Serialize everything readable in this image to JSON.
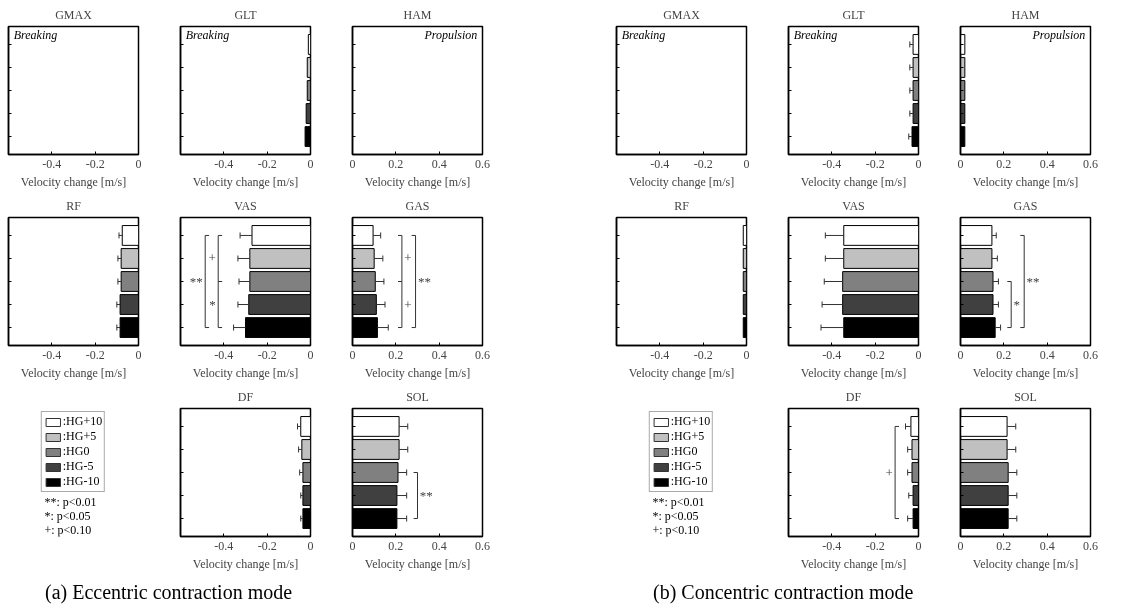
{
  "chart_data": [
    {
      "type": "bar",
      "title": "GMAX",
      "orientation": "horizontal",
      "categories": [
        null,
        null,
        null,
        null,
        null
      ],
      "values": [
        0,
        0,
        0,
        0,
        0
      ],
      "colors": [
        "#ffffff",
        "#c0c0c0",
        "#808080",
        "#404040",
        "#000000"
      ],
      "xlim": [
        -0.6,
        0
      ],
      "xticks": [
        -0.4,
        -0.2,
        0
      ],
      "xlabel": "Velocity change [m/s]",
      "tick_labels": "x",
      "annotations": [
        "Breaking"
      ]
    },
    {
      "type": "bar",
      "title": "GLT",
      "orientation": "horizontal",
      "categories": [
        null,
        null,
        null,
        null,
        null
      ],
      "values": [
        -0.01,
        -0.015,
        -0.015,
        -0.02,
        -0.025
      ],
      "colors": [
        "#ffffff",
        "#c0c0c0",
        "#808080",
        "#404040",
        "#000000"
      ],
      "xlim": [
        -0.6,
        0
      ],
      "xticks": [
        -0.4,
        -0.2,
        0
      ],
      "xlabel": "Velocity change [m/s]",
      "tick_labels": "x",
      "annotations": [
        "Breaking"
      ]
    },
    {
      "type": "bar",
      "title": "HAM",
      "orientation": "horizontal",
      "categories": [
        null,
        null,
        null,
        null,
        null
      ],
      "values": [
        0,
        0,
        0,
        0,
        0
      ],
      "colors": [
        "#ffffff",
        "#c0c0c0",
        "#808080",
        "#404040",
        "#000000"
      ],
      "xlim": [
        0,
        0.6
      ],
      "xticks": [
        0,
        0.2,
        0.4,
        0.6
      ],
      "xlabel": "Velocity change [m/s]",
      "tick_labels": "x",
      "annotations": [
        "Propulsion"
      ]
    },
    {
      "type": "bar",
      "title": "RF",
      "orientation": "horizontal",
      "categories": [
        null,
        null,
        null,
        null,
        null
      ],
      "values": [
        -0.075,
        -0.08,
        -0.08,
        -0.085,
        -0.085
      ],
      "errors": [
        [
          -0.09,
          -0.075
        ],
        [
          -0.095,
          -0.08
        ],
        [
          -0.095,
          -0.08
        ],
        [
          -0.1,
          -0.085
        ],
        [
          -0.1,
          -0.085
        ]
      ],
      "colors": [
        "#ffffff",
        "#c0c0c0",
        "#808080",
        "#404040",
        "#000000"
      ],
      "xlim": [
        -0.6,
        0
      ],
      "xticks": [
        -0.4,
        -0.2,
        0
      ],
      "xlabel": "Velocity change [m/s]",
      "tick_labels": "x"
    },
    {
      "type": "bar",
      "title": "VAS",
      "orientation": "horizontal",
      "categories": [
        null,
        null,
        null,
        null,
        null
      ],
      "values": [
        -0.27,
        -0.28,
        -0.28,
        -0.285,
        -0.3
      ],
      "errors": [
        [
          -0.325,
          -0.27
        ],
        [
          -0.335,
          -0.28
        ],
        [
          -0.33,
          -0.28
        ],
        [
          -0.335,
          -0.285
        ],
        [
          -0.355,
          -0.3
        ]
      ],
      "colors": [
        "#ffffff",
        "#c0c0c0",
        "#808080",
        "#404040",
        "#000000"
      ],
      "xlim": [
        -0.6,
        0
      ],
      "xticks": [
        -0.4,
        -0.2,
        0
      ],
      "xlabel": "Velocity change [m/s]",
      "tick_labels": "x",
      "annotations": [
        "+",
        "*",
        "**"
      ]
    },
    {
      "type": "bar",
      "title": "GAS",
      "orientation": "horizontal",
      "categories": [
        null,
        null,
        null,
        null,
        null
      ],
      "values": [
        0.095,
        0.1,
        0.105,
        0.11,
        0.115
      ],
      "errors": [
        [
          0.095,
          0.13
        ],
        [
          0.1,
          0.14
        ],
        [
          0.105,
          0.145
        ],
        [
          0.11,
          0.15
        ],
        [
          0.115,
          0.165
        ]
      ],
      "colors": [
        "#ffffff",
        "#c0c0c0",
        "#808080",
        "#404040",
        "#000000"
      ],
      "xlim": [
        0,
        0.6
      ],
      "xticks": [
        0,
        0.2,
        0.4,
        0.6
      ],
      "xlabel": "Velocity change [m/s]",
      "tick_labels": "x",
      "annotations": [
        "+",
        "+",
        "**"
      ]
    },
    {
      "type": "other",
      "title": "(a) Eccentric contraction mode",
      "categories": [
        ":HG+10",
        ":HG+5",
        ":HG0",
        ":HG-5",
        ":HG-10"
      ],
      "colors": [
        "#ffffff",
        "#c0c0c0",
        "#808080",
        "#404040",
        "#000000"
      ],
      "annotations": [
        "**: p<0.01",
        "*: p<0.05",
        "+: p<0.10"
      ]
    },
    {
      "type": "bar",
      "title": "DF",
      "orientation": "horizontal",
      "categories": [
        null,
        null,
        null,
        null,
        null
      ],
      "values": [
        -0.045,
        -0.04,
        -0.035,
        -0.035,
        -0.035
      ],
      "errors": [
        [
          -0.06,
          -0.045
        ],
        [
          -0.055,
          -0.04
        ],
        [
          -0.05,
          -0.035
        ],
        [
          -0.045,
          -0.035
        ],
        [
          -0.045,
          -0.035
        ]
      ],
      "colors": [
        "#ffffff",
        "#c0c0c0",
        "#808080",
        "#404040",
        "#000000"
      ],
      "xlim": [
        -0.6,
        0
      ],
      "xticks": [
        -0.4,
        -0.2,
        0
      ],
      "xlabel": "Velocity change [m/s]",
      "tick_labels": "x"
    },
    {
      "type": "bar",
      "title": "SOL",
      "orientation": "horizontal",
      "categories": [
        null,
        null,
        null,
        null,
        null
      ],
      "values": [
        0.215,
        0.215,
        0.21,
        0.205,
        0.205
      ],
      "errors": [
        [
          0.215,
          0.255
        ],
        [
          0.215,
          0.255
        ],
        [
          0.21,
          0.25
        ],
        [
          0.205,
          0.25
        ],
        [
          0.205,
          0.25
        ]
      ],
      "colors": [
        "#ffffff",
        "#c0c0c0",
        "#808080",
        "#404040",
        "#000000"
      ],
      "xlim": [
        0,
        0.6
      ],
      "xticks": [
        0,
        0.2,
        0.4,
        0.6
      ],
      "xlabel": "Velocity change [m/s]",
      "tick_labels": "x",
      "annotations": [
        "**"
      ]
    },
    {
      "type": "bar",
      "title": "GMAX",
      "orientation": "horizontal",
      "categories": [
        null,
        null,
        null,
        null,
        null
      ],
      "values": [
        0,
        0,
        0,
        0,
        0
      ],
      "colors": [
        "#ffffff",
        "#c0c0c0",
        "#808080",
        "#404040",
        "#000000"
      ],
      "xlim": [
        -0.6,
        0
      ],
      "xticks": [
        -0.4,
        -0.2,
        0
      ],
      "xlabel": "Velocity change [m/s]",
      "tick_labels": "x",
      "annotations": [
        "Breaking"
      ]
    },
    {
      "type": "bar",
      "title": "GLT",
      "orientation": "horizontal",
      "categories": [
        null,
        null,
        null,
        null,
        null
      ],
      "values": [
        -0.025,
        -0.025,
        -0.025,
        -0.025,
        -0.03
      ],
      "errors": [
        [
          -0.04,
          -0.025
        ],
        [
          -0.04,
          -0.025
        ],
        [
          -0.04,
          -0.025
        ],
        [
          -0.04,
          -0.025
        ],
        [
          -0.045,
          -0.03
        ]
      ],
      "colors": [
        "#ffffff",
        "#c0c0c0",
        "#808080",
        "#404040",
        "#000000"
      ],
      "xlim": [
        -0.6,
        0
      ],
      "xticks": [
        -0.4,
        -0.2,
        0
      ],
      "xlabel": "Velocity change [m/s]",
      "tick_labels": "x",
      "annotations": [
        "Breaking"
      ]
    },
    {
      "type": "bar",
      "title": "HAM",
      "orientation": "horizontal",
      "categories": [
        null,
        null,
        null,
        null,
        null
      ],
      "values": [
        0.02,
        0.02,
        0.02,
        0.02,
        0.02
      ],
      "colors": [
        "#ffffff",
        "#c0c0c0",
        "#808080",
        "#404040",
        "#000000"
      ],
      "xlim": [
        0,
        0.6
      ],
      "xticks": [
        0,
        0.2,
        0.4,
        0.6
      ],
      "xlabel": "Velocity change [m/s]",
      "tick_labels": "x",
      "annotations": [
        "Propulsion"
      ]
    },
    {
      "type": "bar",
      "title": "RF",
      "orientation": "horizontal",
      "categories": [
        null,
        null,
        null,
        null,
        null
      ],
      "values": [
        -0.015,
        -0.015,
        -0.015,
        -0.015,
        -0.015
      ],
      "colors": [
        "#ffffff",
        "#c0c0c0",
        "#808080",
        "#404040",
        "#000000"
      ],
      "xlim": [
        -0.6,
        0
      ],
      "xticks": [
        -0.4,
        -0.2,
        0
      ],
      "xlabel": "Velocity change [m/s]",
      "tick_labels": "x"
    },
    {
      "type": "bar",
      "title": "VAS",
      "orientation": "horizontal",
      "categories": [
        null,
        null,
        null,
        null,
        null
      ],
      "values": [
        -0.345,
        -0.345,
        -0.35,
        -0.35,
        -0.345
      ],
      "errors": [
        [
          -0.43,
          -0.345
        ],
        [
          -0.43,
          -0.345
        ],
        [
          -0.435,
          -0.35
        ],
        [
          -0.445,
          -0.35
        ],
        [
          -0.45,
          -0.345
        ]
      ],
      "colors": [
        "#ffffff",
        "#c0c0c0",
        "#808080",
        "#404040",
        "#000000"
      ],
      "xlim": [
        -0.6,
        0
      ],
      "xticks": [
        -0.4,
        -0.2,
        0
      ],
      "xlabel": "Velocity change [m/s]",
      "tick_labels": "x"
    },
    {
      "type": "bar",
      "title": "GAS",
      "orientation": "horizontal",
      "categories": [
        null,
        null,
        null,
        null,
        null
      ],
      "values": [
        0.145,
        0.145,
        0.15,
        0.15,
        0.16
      ],
      "errors": [
        [
          0.145,
          0.165
        ],
        [
          0.145,
          0.17
        ],
        [
          0.15,
          0.175
        ],
        [
          0.15,
          0.175
        ],
        [
          0.16,
          0.185
        ]
      ],
      "colors": [
        "#ffffff",
        "#c0c0c0",
        "#808080",
        "#404040",
        "#000000"
      ],
      "xlim": [
        0,
        0.6
      ],
      "xticks": [
        0,
        0.2,
        0.4,
        0.6
      ],
      "xlabel": "Velocity change [m/s]",
      "tick_labels": "x",
      "annotations": [
        "**",
        "*"
      ]
    },
    {
      "type": "other",
      "title": "(b) Concentric contraction mode",
      "categories": [
        ":HG+10",
        ":HG+5",
        ":HG0",
        ":HG-5",
        ":HG-10"
      ],
      "colors": [
        "#ffffff",
        "#c0c0c0",
        "#808080",
        "#404040",
        "#000000"
      ],
      "annotations": [
        "**: p<0.01",
        "*: p<0.05",
        "+: p<0.10"
      ]
    },
    {
      "type": "bar",
      "title": "DF",
      "orientation": "horizontal",
      "categories": [
        null,
        null,
        null,
        null,
        null
      ],
      "values": [
        -0.035,
        -0.03,
        -0.03,
        -0.025,
        -0.025
      ],
      "errors": [
        [
          -0.06,
          -0.035
        ],
        [
          -0.05,
          -0.03
        ],
        [
          -0.05,
          -0.03
        ],
        [
          -0.045,
          -0.025
        ],
        [
          -0.05,
          -0.025
        ]
      ],
      "colors": [
        "#ffffff",
        "#c0c0c0",
        "#808080",
        "#404040",
        "#000000"
      ],
      "xlim": [
        -0.6,
        0
      ],
      "xticks": [
        -0.4,
        -0.2,
        0
      ],
      "xlabel": "Velocity change [m/s]",
      "tick_labels": "x",
      "annotations": [
        "+"
      ]
    },
    {
      "type": "bar",
      "title": "SOL",
      "orientation": "horizontal",
      "categories": [
        null,
        null,
        null,
        null,
        null
      ],
      "values": [
        0.215,
        0.215,
        0.22,
        0.22,
        0.22
      ],
      "errors": [
        [
          0.215,
          0.255
        ],
        [
          0.215,
          0.255
        ],
        [
          0.22,
          0.26
        ],
        [
          0.22,
          0.26
        ],
        [
          0.22,
          0.26
        ]
      ],
      "colors": [
        "#ffffff",
        "#c0c0c0",
        "#808080",
        "#404040",
        "#000000"
      ],
      "xlim": [
        0,
        0.6
      ],
      "xticks": [
        0,
        0.2,
        0.4,
        0.6
      ],
      "xlabel": "Velocity change [m/s]",
      "tick_labels": "x"
    }
  ]
}
